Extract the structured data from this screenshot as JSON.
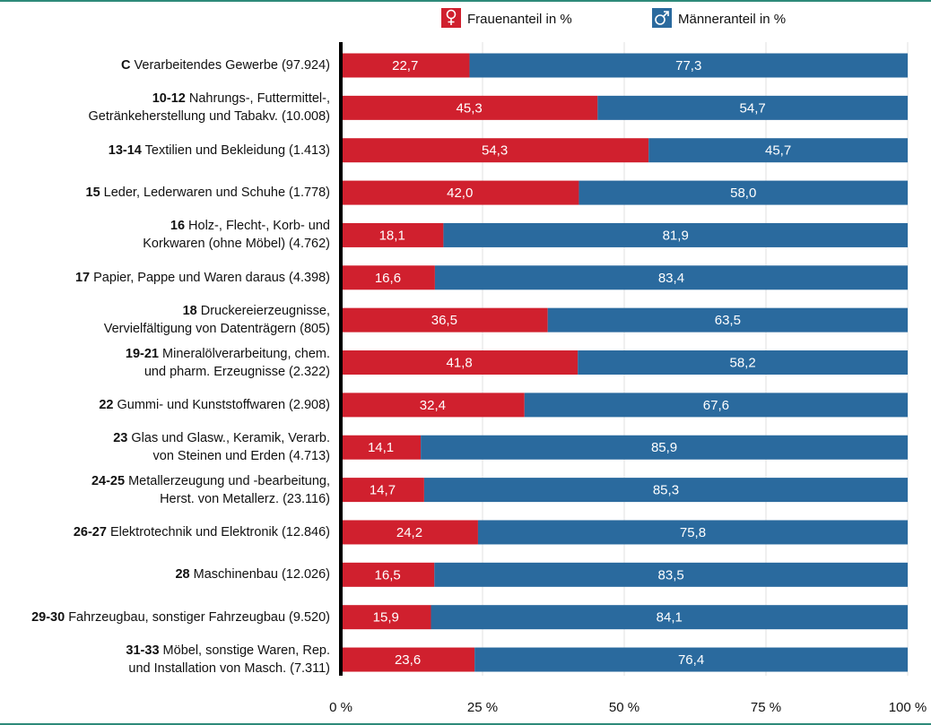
{
  "chart_data": {
    "type": "stacked_bar_horizontal",
    "category_codes": [
      "C",
      "10-12",
      "13-14",
      "15",
      "16",
      "17",
      "18",
      "19-21",
      "22",
      "23",
      "24-25",
      "26-27",
      "28",
      "29-30",
      "31-33"
    ],
    "categories": [
      "Verarbeitendes Gewerbe (97.924)",
      "Nahrungs-, Futtermittel-, Getränkeherstellung und Tabakv. (10.008)",
      "Textilien und Bekleidung (1.413)",
      "Leder, Lederwaren und Schuhe  (1.778)",
      "Holz-, Flecht-, Korb- und Korkwaren (ohne Möbel)  (4.762)",
      "Papier, Pappe und Waren daraus  (4.398)",
      "Druckereierzeugnisse, Vervielfältigung von Datenträgern (805)",
      "Mineralölverarbeitung, chem. und pharm. Erzeugnisse (2.322)",
      "Gummi- und Kunststoffwaren (2.908)",
      "Glas und Glasw., Keramik, Verarb. von Steinen und Erden  (4.713)",
      "Metallerzeugung und -bearbeitung, Herst. von Metallerz. (23.116)",
      "Elektrotechnik und Elektronik (12.846)",
      "Maschinenbau (12.026)",
      "Fahrzeugbau, sonstiger Fahrzeugbau (9.520)",
      "Möbel, sonstige Waren, Rep. und Installation von Masch. (7.311)"
    ],
    "series": [
      {
        "name": "Frauenanteil in %",
        "color": "#d0202e",
        "values": [
          22.7,
          45.3,
          54.3,
          42.0,
          18.1,
          16.6,
          36.5,
          41.8,
          32.4,
          14.1,
          14.7,
          24.2,
          16.5,
          15.9,
          23.6
        ],
        "value_labels": [
          "22,7",
          "45,3",
          "54,3",
          "42,0",
          "18,1",
          "16,6",
          "36,5",
          "41,8",
          "32,4",
          "14,1",
          "14,7",
          "24,2",
          "16,5",
          "15,9",
          "23,6"
        ]
      },
      {
        "name": "Männeranteil in %",
        "color": "#2a6a9e",
        "values": [
          77.3,
          54.7,
          45.7,
          58.0,
          81.9,
          83.4,
          63.5,
          58.2,
          67.6,
          85.9,
          85.3,
          75.8,
          83.5,
          84.1,
          76.4
        ],
        "value_labels": [
          "77,3",
          "54,7",
          "45,7",
          "58,0",
          "81,9",
          "83,4",
          "63,5",
          "58,2",
          "67,6",
          "85,9",
          "85,3",
          "75,8",
          "83,5",
          "84,1",
          "76,4"
        ]
      }
    ],
    "xlim": [
      0,
      100
    ],
    "xticks": [
      {
        "value": 0,
        "label": "0 %"
      },
      {
        "value": 25,
        "label": "25 %"
      },
      {
        "value": 50,
        "label": "50 %"
      },
      {
        "value": 75,
        "label": "75 %"
      },
      {
        "value": 100,
        "label": "100 %"
      }
    ],
    "grid": true,
    "legend": "top"
  }
}
